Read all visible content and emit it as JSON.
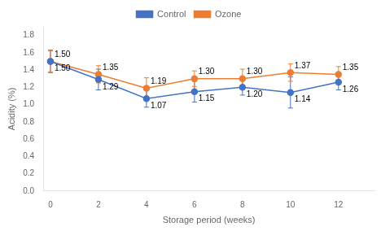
{
  "chart_data": {
    "type": "line",
    "xlabel": "Storage period (weeks)",
    "ylabel": "Acidity (%)",
    "x": [
      0,
      2,
      4,
      6,
      8,
      10,
      12
    ],
    "series": [
      {
        "name": "Control",
        "color": "#4472C4",
        "marker": "circle",
        "line_style": "solid",
        "values": [
          1.5,
          1.29,
          1.07,
          1.15,
          1.2,
          1.14,
          1.26
        ],
        "errors": [
          0.13,
          0.12,
          0.1,
          0.12,
          0.09,
          0.18,
          0.09
        ],
        "value_labels": [
          "1.50",
          "1.29",
          "1.07",
          "1.15",
          "1.20",
          "1.14",
          "1.26"
        ]
      },
      {
        "name": "Ozone",
        "color": "#ED7D31",
        "marker": "circle",
        "line_style": "solid",
        "values": [
          1.5,
          1.35,
          1.19,
          1.3,
          1.3,
          1.37,
          1.35
        ],
        "errors": [
          0.12,
          0.1,
          0.12,
          0.09,
          0.11,
          0.1,
          0.09
        ],
        "value_labels": [
          "1.50",
          "1.35",
          "1.19",
          "1.30",
          "1.30",
          "1.37",
          "1.35"
        ]
      }
    ],
    "xlim": [
      -0.3,
      13.5
    ],
    "ylim": [
      0.0,
      1.9
    ],
    "xticks": [
      0,
      2,
      4,
      6,
      8,
      10,
      12
    ],
    "yticks": [
      {
        "value": 0,
        "label": "0.0"
      },
      0.2,
      0.4,
      0.6,
      0.8,
      {
        "value": 1,
        "label": "1.0"
      },
      1.2,
      1.4,
      1.6,
      1.8
    ],
    "grid": false,
    "legend": "top",
    "data_labels": true
  }
}
